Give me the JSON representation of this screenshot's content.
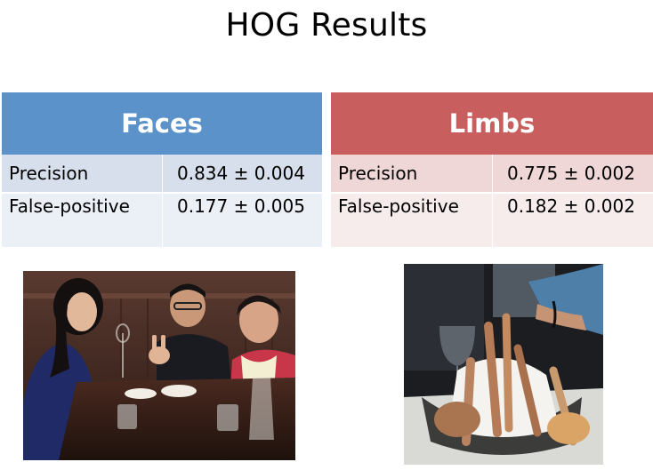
{
  "slide": {
    "title": "HOG Results"
  },
  "tables": [
    {
      "header": "Faces",
      "rows": [
        {
          "label": "Precision",
          "value": "0.834 ± 0.004"
        },
        {
          "label": "False-positive",
          "value": "0.177 ± 0.005"
        }
      ]
    },
    {
      "header": "Limbs",
      "rows": [
        {
          "label": "Precision",
          "value": "0.775 ± 0.002"
        },
        {
          "label": "False-positive",
          "value": "0.182 ± 0.002"
        }
      ]
    }
  ],
  "colors": {
    "faces_header": "#5b92c9",
    "limbs_header": "#c85e5e"
  }
}
